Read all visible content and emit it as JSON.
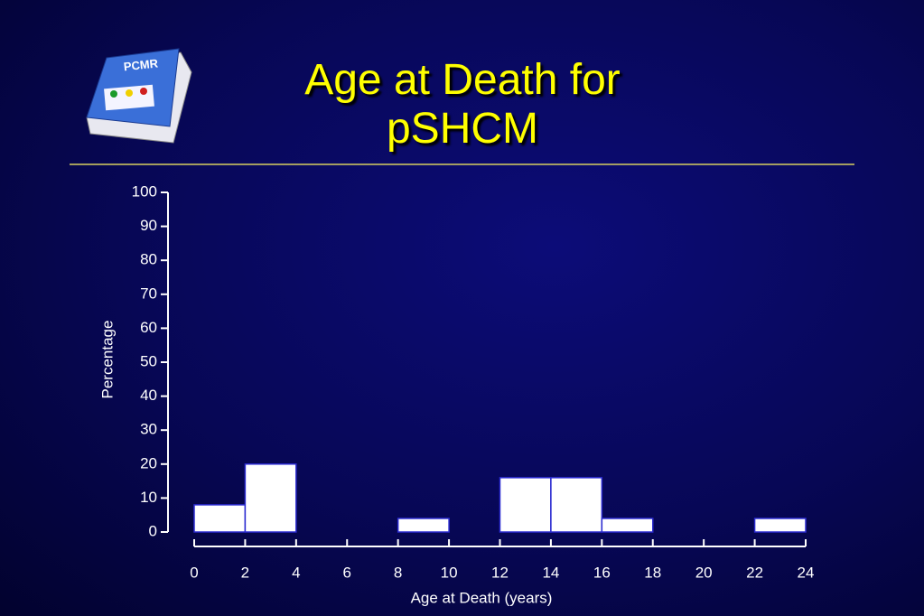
{
  "logo": "PCMR",
  "chart_data": {
    "type": "histogram",
    "title": "Age at Death for\npSHCM",
    "x_label": "Age at Death (years)",
    "y_label": "Percentage",
    "bins": [
      0,
      2,
      4,
      6,
      8,
      10,
      12,
      14,
      16,
      18,
      20,
      22,
      24
    ],
    "values": [
      8,
      20,
      0,
      0,
      4,
      0,
      16,
      16,
      4,
      0,
      0,
      4
    ],
    "color": "#ffffff",
    "edge_color": "#2a2ad0",
    "xlim": [
      0,
      24
    ],
    "xticks": [
      0,
      2,
      4,
      6,
      8,
      10,
      12,
      14,
      16,
      18,
      20,
      22,
      24
    ],
    "ylim": [
      0,
      100
    ],
    "yticks": [
      0,
      10,
      20,
      30,
      40,
      50,
      60,
      70,
      80,
      90,
      100
    ],
    "grid": false
  }
}
